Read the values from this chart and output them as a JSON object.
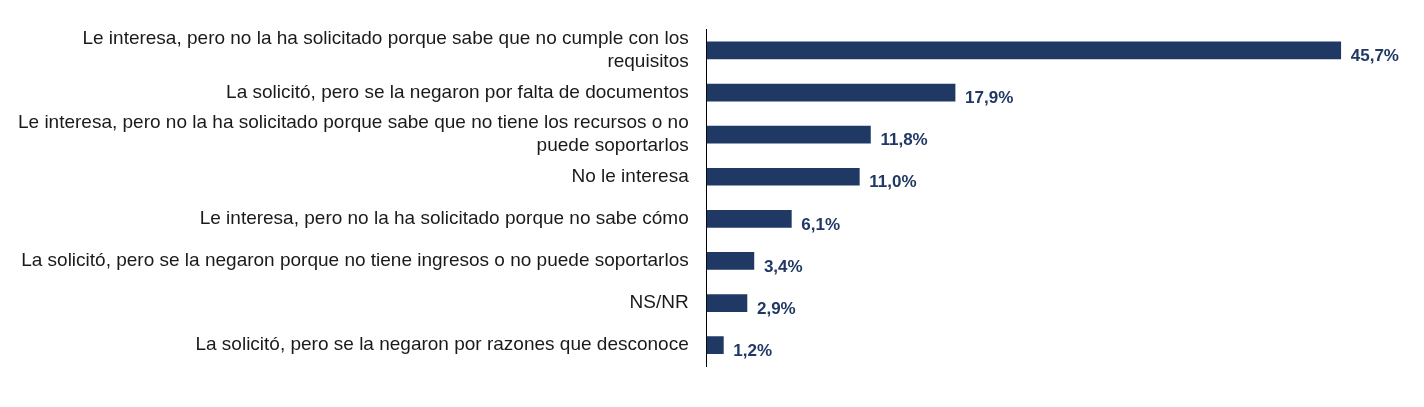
{
  "chart_data": {
    "type": "bar",
    "orientation": "horizontal",
    "data_labels": true,
    "categories": [
      "Le interesa, pero no la ha solicitado porque sabe que no cumple con los requisitos",
      "La solicitó, pero se la negaron por falta de documentos",
      "Le interesa, pero no la ha solicitado porque sabe que no tiene los recursos o no puede soportarlos",
      "No le interesa",
      "Le interesa, pero no la ha solicitado porque no sabe cómo",
      "La solicitó, pero se la negaron porque no tiene ingresos o no puede soportarlos",
      "NS/NR",
      "La solicitó, pero se la negaron por razones que desconoce"
    ],
    "values": [
      45.7,
      17.9,
      11.8,
      11.0,
      6.1,
      3.4,
      2.9,
      1.2
    ],
    "value_labels": [
      "45,7%",
      "17,9%",
      "11,8%",
      "11,0%",
      "6,1%",
      "3,4%",
      "2,9%",
      "1,2%"
    ],
    "color": "#203864"
  }
}
